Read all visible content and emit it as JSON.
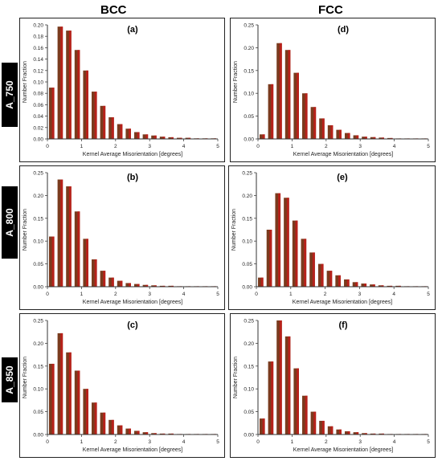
{
  "headers": {
    "bcc": "BCC",
    "fcc": "FCC"
  },
  "row_labels": [
    "A_750",
    "A_800",
    "A_850"
  ],
  "colors": {
    "bar_fill": "#7a3b1e",
    "bar_highlight": "#cc1a1a",
    "frame": "#222222"
  },
  "chart_data": [
    {
      "type": "bar",
      "panel_label": "(a)",
      "xlabel": "Kernel Average Misorientation [degrees]",
      "ylabel": "Number Fraction",
      "x": [
        0.125,
        0.375,
        0.625,
        0.875,
        1.125,
        1.375,
        1.625,
        1.875,
        2.125,
        2.375,
        2.625,
        2.875,
        3.125,
        3.375,
        3.625,
        3.875,
        4.125,
        4.375,
        4.625,
        4.875
      ],
      "values": [
        0.09,
        0.197,
        0.19,
        0.156,
        0.12,
        0.083,
        0.058,
        0.038,
        0.026,
        0.018,
        0.012,
        0.008,
        0.006,
        0.004,
        0.003,
        0.002,
        0.002,
        0.001,
        0.001,
        0.001
      ],
      "ylim": [
        0,
        0.2
      ],
      "yticks": [
        "0.00",
        "0.02",
        "0.04",
        "0.06",
        "0.08",
        "0.10",
        "0.12",
        "0.14",
        "0.16",
        "0.18",
        "0.20"
      ],
      "xlim": [
        0,
        5
      ],
      "xticks": [
        "0",
        "1",
        "2",
        "3",
        "4",
        "5"
      ]
    },
    {
      "type": "bar",
      "panel_label": "(d)",
      "xlabel": "Kernel Average Misorientation [degrees]",
      "ylabel": "Number Fraction",
      "x": [
        0.125,
        0.375,
        0.625,
        0.875,
        1.125,
        1.375,
        1.625,
        1.875,
        2.125,
        2.375,
        2.625,
        2.875,
        3.125,
        3.375,
        3.625,
        3.875,
        4.125,
        4.375,
        4.625,
        4.875
      ],
      "values": [
        0.01,
        0.12,
        0.21,
        0.195,
        0.145,
        0.1,
        0.07,
        0.045,
        0.03,
        0.02,
        0.013,
        0.008,
        0.005,
        0.004,
        0.003,
        0.002,
        0.001,
        0.001,
        0.001,
        0.001
      ],
      "ylim": [
        0,
        0.25
      ],
      "yticks": [
        "0.00",
        "0.05",
        "0.10",
        "0.15",
        "0.20",
        "0.25"
      ],
      "xlim": [
        0,
        5
      ],
      "xticks": [
        "0",
        "1",
        "2",
        "3",
        "4",
        "5"
      ]
    },
    {
      "type": "bar",
      "panel_label": "(b)",
      "xlabel": "Kernel Average Misorientation [degrees]",
      "ylabel": "Number Fraction",
      "x": [
        0.125,
        0.375,
        0.625,
        0.875,
        1.125,
        1.375,
        1.625,
        1.875,
        2.125,
        2.375,
        2.625,
        2.875,
        3.125,
        3.375,
        3.625,
        3.875,
        4.125,
        4.375,
        4.625,
        4.875
      ],
      "values": [
        0.11,
        0.235,
        0.22,
        0.165,
        0.105,
        0.06,
        0.035,
        0.02,
        0.013,
        0.008,
        0.006,
        0.004,
        0.003,
        0.002,
        0.002,
        0.001,
        0.001,
        0.001,
        0.001,
        0.001
      ],
      "ylim": [
        0,
        0.25
      ],
      "yticks": [
        "0.00",
        "0.05",
        "0.10",
        "0.15",
        "0.20",
        "0.25"
      ],
      "xlim": [
        0,
        5
      ],
      "xticks": [
        "0",
        "1",
        "2",
        "3",
        "4",
        "5"
      ]
    },
    {
      "type": "bar",
      "panel_label": "(e)",
      "xlabel": "Kernel Average Misorientation [degrees]",
      "ylabel": "Number Fraction",
      "x": [
        0.125,
        0.375,
        0.625,
        0.875,
        1.125,
        1.375,
        1.625,
        1.875,
        2.125,
        2.375,
        2.625,
        2.875,
        3.125,
        3.375,
        3.625,
        3.875,
        4.125,
        4.375,
        4.625,
        4.875
      ],
      "values": [
        0.02,
        0.125,
        0.205,
        0.195,
        0.145,
        0.105,
        0.075,
        0.05,
        0.035,
        0.025,
        0.016,
        0.01,
        0.007,
        0.005,
        0.003,
        0.002,
        0.002,
        0.001,
        0.001,
        0.001
      ],
      "ylim": [
        0,
        0.25
      ],
      "yticks": [
        "0.00",
        "0.05",
        "0.10",
        "0.15",
        "0.20",
        "0.25"
      ],
      "xlim": [
        0,
        5
      ],
      "xticks": [
        "0",
        "1",
        "2",
        "3",
        "4",
        "5"
      ]
    },
    {
      "type": "bar",
      "panel_label": "(c)",
      "xlabel": "Kernel Average Misorientation [degrees]",
      "ylabel": "Number Fraction",
      "x": [
        0.125,
        0.375,
        0.625,
        0.875,
        1.125,
        1.375,
        1.625,
        1.875,
        2.125,
        2.375,
        2.625,
        2.875,
        3.125,
        3.375,
        3.625,
        3.875,
        4.125,
        4.375,
        4.625,
        4.875
      ],
      "values": [
        0.155,
        0.222,
        0.18,
        0.14,
        0.1,
        0.07,
        0.048,
        0.032,
        0.02,
        0.013,
        0.008,
        0.005,
        0.003,
        0.002,
        0.002,
        0.001,
        0.001,
        0.001,
        0.001,
        0.001
      ],
      "ylim": [
        0,
        0.25
      ],
      "yticks": [
        "0.00",
        "0.05",
        "0.10",
        "0.15",
        "0.20",
        "0.25"
      ],
      "xlim": [
        0,
        5
      ],
      "xticks": [
        "0",
        "1",
        "2",
        "3",
        "4",
        "5"
      ]
    },
    {
      "type": "bar",
      "panel_label": "(f)",
      "xlabel": "Kernel Average Misorientation [degrees]",
      "ylabel": "Number Fraction",
      "x": [
        0.125,
        0.375,
        0.625,
        0.875,
        1.125,
        1.375,
        1.625,
        1.875,
        2.125,
        2.375,
        2.625,
        2.875,
        3.125,
        3.375,
        3.625,
        3.875,
        4.125,
        4.375,
        4.625,
        4.875
      ],
      "values": [
        0.035,
        0.16,
        0.25,
        0.215,
        0.145,
        0.085,
        0.05,
        0.03,
        0.018,
        0.011,
        0.007,
        0.005,
        0.003,
        0.002,
        0.002,
        0.001,
        0.001,
        0.001,
        0.001,
        0.001
      ],
      "ylim": [
        0,
        0.25
      ],
      "yticks": [
        "0.00",
        "0.05",
        "0.10",
        "0.15",
        "0.20",
        "0.25"
      ],
      "xlim": [
        0,
        5
      ],
      "xticks": [
        "0",
        "1",
        "2",
        "3",
        "4",
        "5"
      ]
    }
  ]
}
